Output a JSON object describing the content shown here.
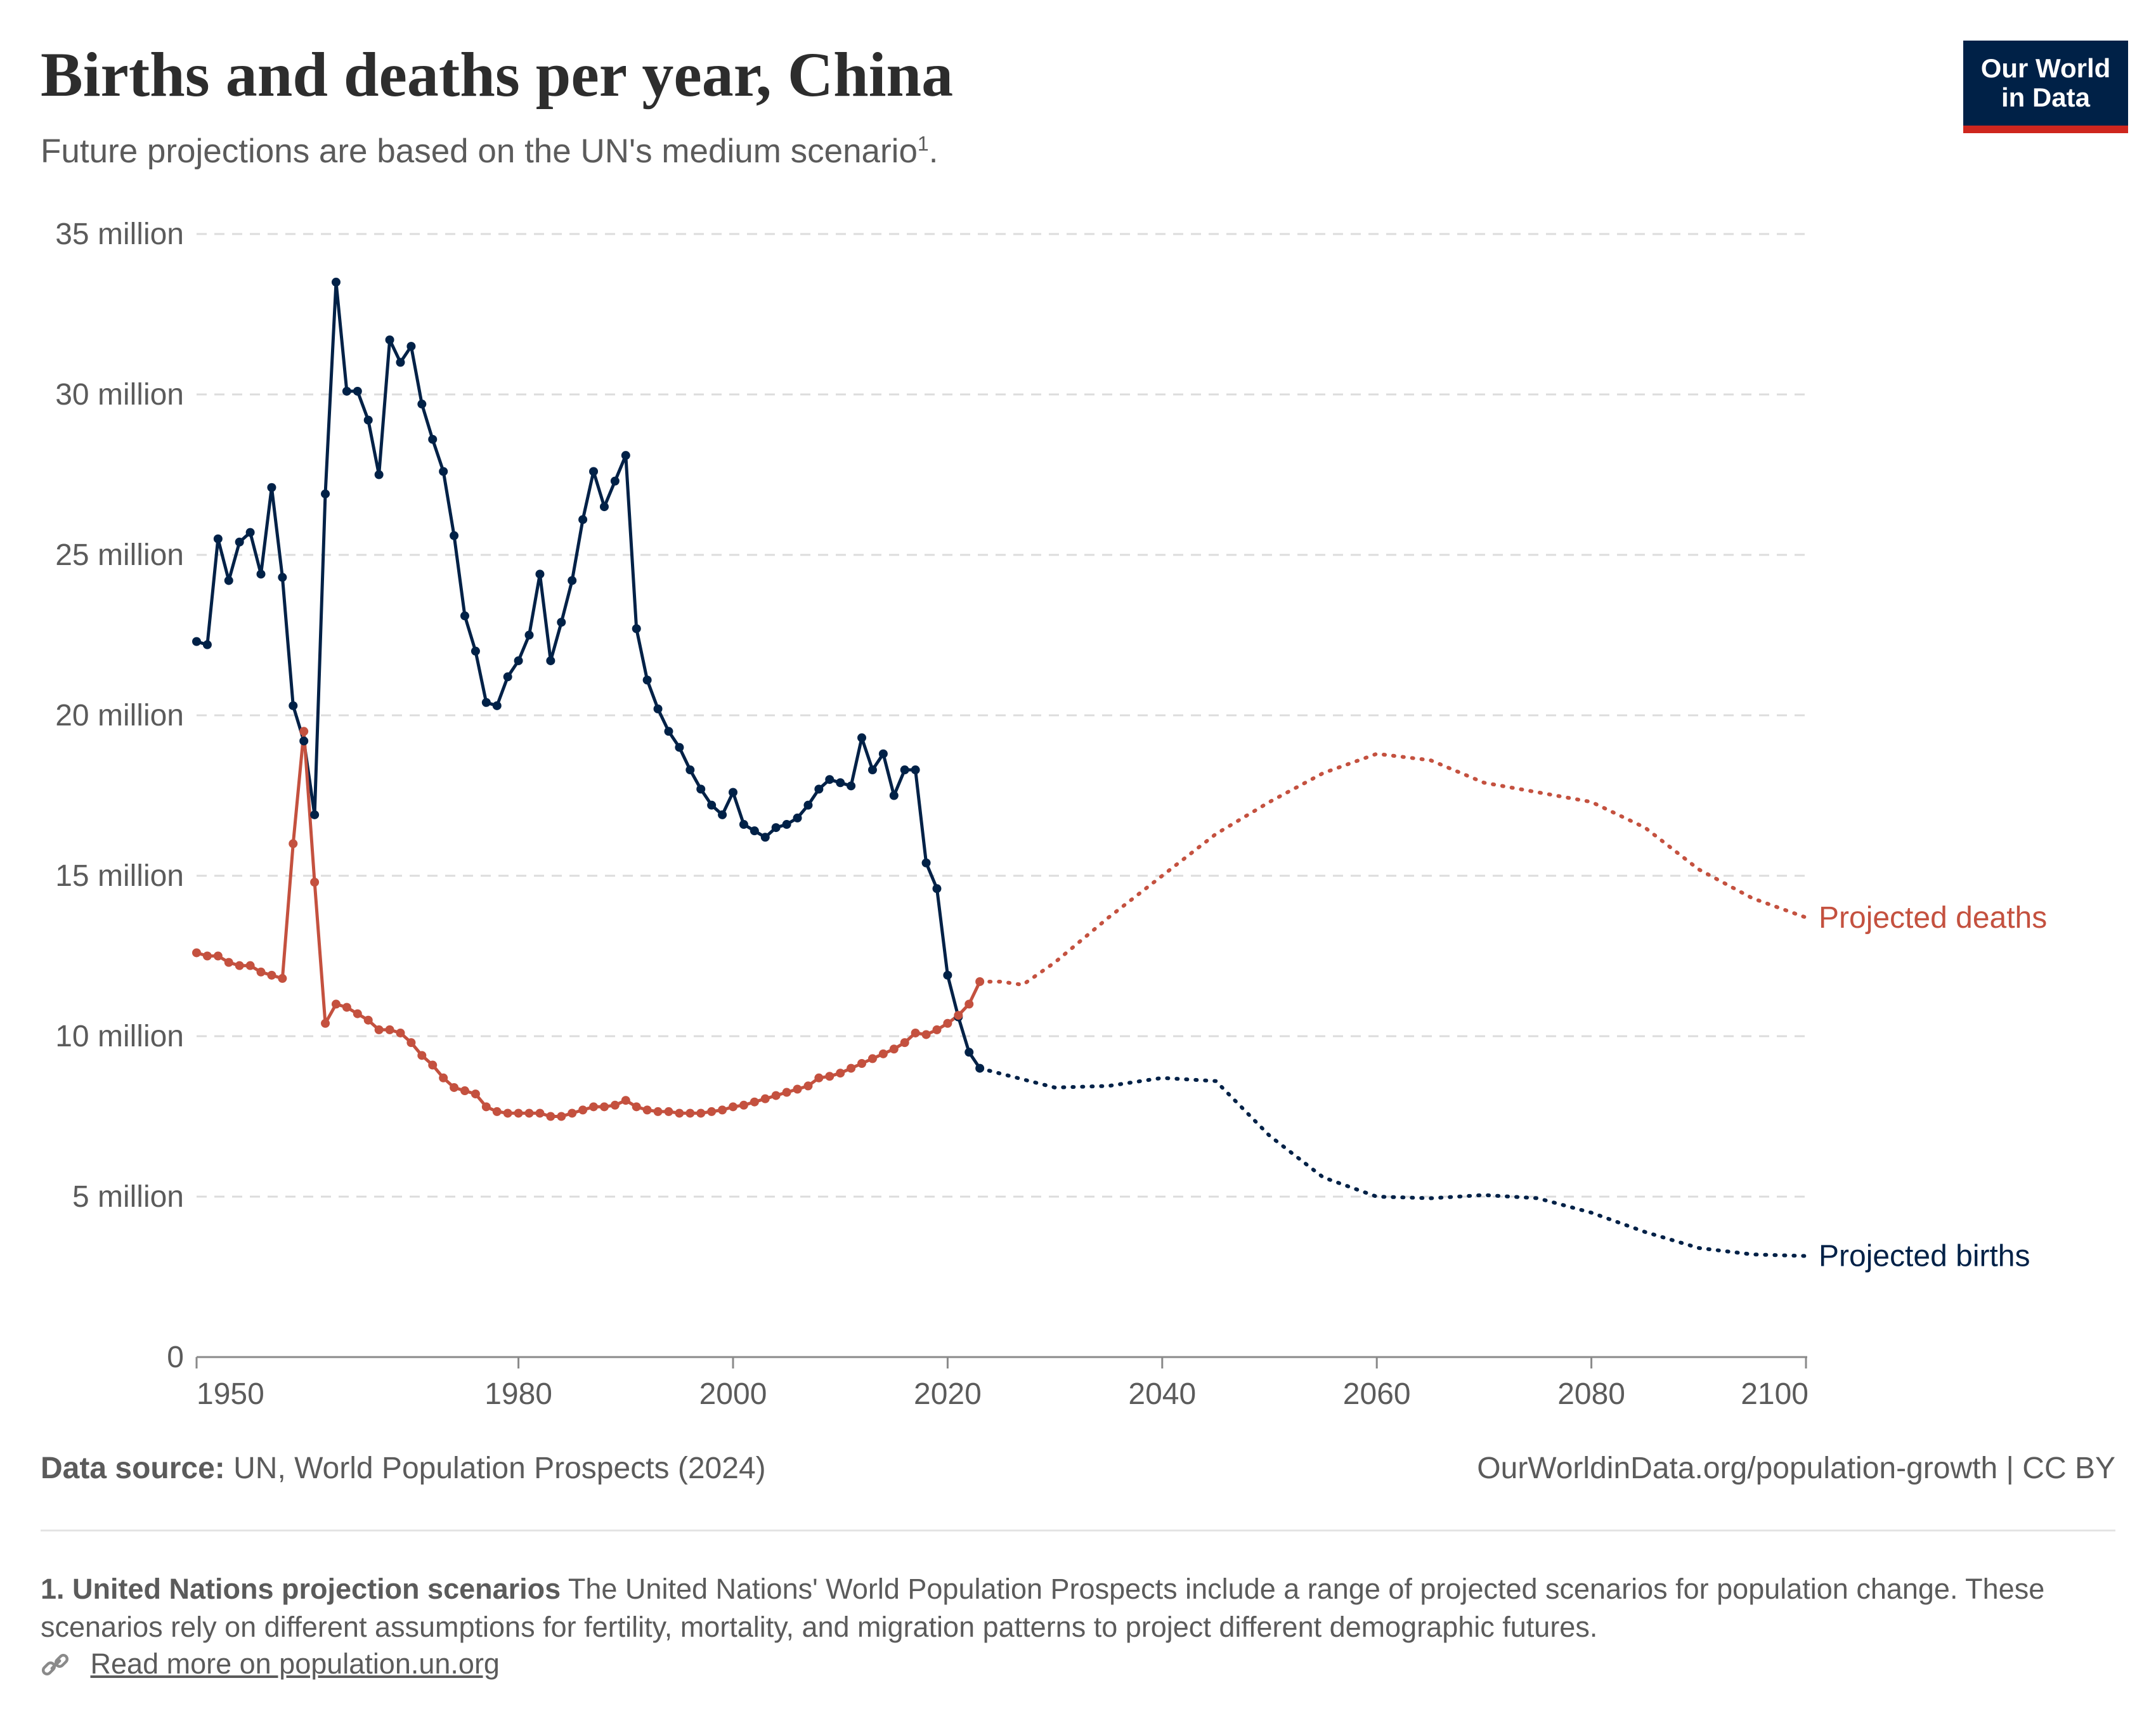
{
  "header": {
    "title": "Births and deaths per year, China",
    "subtitle": "Future projections are based on the UN's medium scenario",
    "subtitle_note_marker": "1",
    "subtitle_end": "."
  },
  "logo": {
    "line1": "Our World",
    "line2": "in Data",
    "bg_color": "#002147",
    "accent_color": "#ce261e"
  },
  "chart_data": {
    "type": "line",
    "title": "Births and deaths per year, China",
    "xlim": [
      1950,
      2100
    ],
    "ylim": [
      0,
      35000000
    ],
    "x_ticks": [
      {
        "value": 1950,
        "label": "1950"
      },
      {
        "value": 1980,
        "label": "1980"
      },
      {
        "value": 2000,
        "label": "2000"
      },
      {
        "value": 2020,
        "label": "2020"
      },
      {
        "value": 2040,
        "label": "2040"
      },
      {
        "value": 2060,
        "label": "2060"
      },
      {
        "value": 2080,
        "label": "2080"
      },
      {
        "value": 2100,
        "label": "2100"
      }
    ],
    "y_ticks": [
      {
        "value": 0,
        "label": "0"
      },
      {
        "value": 5000000,
        "label": "5 million"
      },
      {
        "value": 10000000,
        "label": "10 million"
      },
      {
        "value": 15000000,
        "label": "15 million"
      },
      {
        "value": 20000000,
        "label": "20 million"
      },
      {
        "value": 25000000,
        "label": "25 million"
      },
      {
        "value": 30000000,
        "label": "30 million"
      },
      {
        "value": 35000000,
        "label": "35 million"
      }
    ],
    "grid": "horizontal dashed",
    "series": [
      {
        "key": "births",
        "color": "#002147",
        "x": [
          1950,
          1951,
          1952,
          1953,
          1954,
          1955,
          1956,
          1957,
          1958,
          1959,
          1960,
          1961,
          1962,
          1963,
          1964,
          1965,
          1966,
          1967,
          1968,
          1969,
          1970,
          1971,
          1972,
          1973,
          1974,
          1975,
          1976,
          1977,
          1978,
          1979,
          1980,
          1981,
          1982,
          1983,
          1984,
          1985,
          1986,
          1987,
          1988,
          1989,
          1990,
          1991,
          1992,
          1993,
          1994,
          1995,
          1996,
          1997,
          1998,
          1999,
          2000,
          2001,
          2002,
          2003,
          2004,
          2005,
          2006,
          2007,
          2008,
          2009,
          2010,
          2011,
          2012,
          2013,
          2014,
          2015,
          2016,
          2017,
          2018,
          2019,
          2020,
          2021,
          2022,
          2023
        ],
        "values": [
          22300000,
          22200000,
          25500000,
          24200000,
          25400000,
          25700000,
          24400000,
          27100000,
          24300000,
          20300000,
          19200000,
          16900000,
          26900000,
          33500000,
          30100000,
          30100000,
          29200000,
          27500000,
          31700000,
          31000000,
          31500000,
          29700000,
          28600000,
          27600000,
          25600000,
          23100000,
          22000000,
          20400000,
          20300000,
          21200000,
          21700000,
          22500000,
          24400000,
          21700000,
          22900000,
          24200000,
          26100000,
          27600000,
          26500000,
          27300000,
          28100000,
          22700000,
          21100000,
          20200000,
          19500000,
          19000000,
          18300000,
          17700000,
          17200000,
          16900000,
          17600000,
          16600000,
          16400000,
          16200000,
          16500000,
          16600000,
          16800000,
          17200000,
          17700000,
          18000000,
          17900000,
          17800000,
          19300000,
          18300000,
          18800000,
          17500000,
          18300000,
          18300000,
          15400000,
          14600000,
          11900000,
          10600000,
          9500000,
          9000000
        ]
      },
      {
        "key": "births_projected",
        "name": "Projected births",
        "color": "#002147",
        "x": [
          2023,
          2030,
          2035,
          2040,
          2045,
          2050,
          2055,
          2060,
          2065,
          2070,
          2075,
          2080,
          2085,
          2090,
          2095,
          2100
        ],
        "values": [
          9000000,
          8400000,
          8450000,
          8700000,
          8600000,
          6900000,
          5600000,
          5000000,
          4950000,
          5050000,
          4950000,
          4500000,
          3900000,
          3400000,
          3200000,
          3150000
        ]
      },
      {
        "key": "deaths",
        "color": "#c4513f",
        "x": [
          1950,
          1951,
          1952,
          1953,
          1954,
          1955,
          1956,
          1957,
          1958,
          1959,
          1960,
          1961,
          1962,
          1963,
          1964,
          1965,
          1966,
          1967,
          1968,
          1969,
          1970,
          1971,
          1972,
          1973,
          1974,
          1975,
          1976,
          1977,
          1978,
          1979,
          1980,
          1981,
          1982,
          1983,
          1984,
          1985,
          1986,
          1987,
          1988,
          1989,
          1990,
          1991,
          1992,
          1993,
          1994,
          1995,
          1996,
          1997,
          1998,
          1999,
          2000,
          2001,
          2002,
          2003,
          2004,
          2005,
          2006,
          2007,
          2008,
          2009,
          2010,
          2011,
          2012,
          2013,
          2014,
          2015,
          2016,
          2017,
          2018,
          2019,
          2020,
          2021,
          2022,
          2023
        ],
        "values": [
          12600000,
          12500000,
          12500000,
          12300000,
          12200000,
          12200000,
          12000000,
          11900000,
          11800000,
          16000000,
          19500000,
          14800000,
          10400000,
          11000000,
          10900000,
          10700000,
          10500000,
          10200000,
          10200000,
          10100000,
          9800000,
          9400000,
          9100000,
          8700000,
          8400000,
          8300000,
          8200000,
          7800000,
          7650000,
          7600000,
          7600000,
          7600000,
          7600000,
          7500000,
          7500000,
          7600000,
          7700000,
          7800000,
          7800000,
          7850000,
          8000000,
          7800000,
          7700000,
          7650000,
          7650000,
          7600000,
          7600000,
          7600000,
          7650000,
          7700000,
          7800000,
          7850000,
          7950000,
          8050000,
          8150000,
          8250000,
          8350000,
          8450000,
          8700000,
          8750000,
          8850000,
          9000000,
          9150000,
          9300000,
          9450000,
          9600000,
          9800000,
          10100000,
          10050000,
          10200000,
          10400000,
          10650000,
          11000000,
          11700000
        ]
      },
      {
        "key": "deaths_projected",
        "name": "Projected deaths",
        "color": "#c4513f",
        "x": [
          2023,
          2025,
          2027,
          2030,
          2035,
          2040,
          2045,
          2050,
          2055,
          2060,
          2065,
          2070,
          2075,
          2080,
          2085,
          2090,
          2095,
          2100
        ],
        "values": [
          11700000,
          11700000,
          11600000,
          12300000,
          13700000,
          15000000,
          16300000,
          17300000,
          18200000,
          18800000,
          18600000,
          17900000,
          17600000,
          17300000,
          16500000,
          15200000,
          14300000,
          13700000
        ]
      }
    ]
  },
  "footer": {
    "source_label": "Data source:",
    "source_text": "UN, World Population Prospects (2024)",
    "url": "OurWorldinData.org/population-growth | CC BY",
    "footnote_title": "1. United Nations projection scenarios",
    "footnote_text": "The United Nations' World Population Prospects include a range of projected scenarios for population change. These scenarios rely on different assumptions for fertility, mortality, and migration patterns to project different demographic futures.",
    "read_more": "Read more on population.un.org",
    "link_icon": "link-icon"
  }
}
